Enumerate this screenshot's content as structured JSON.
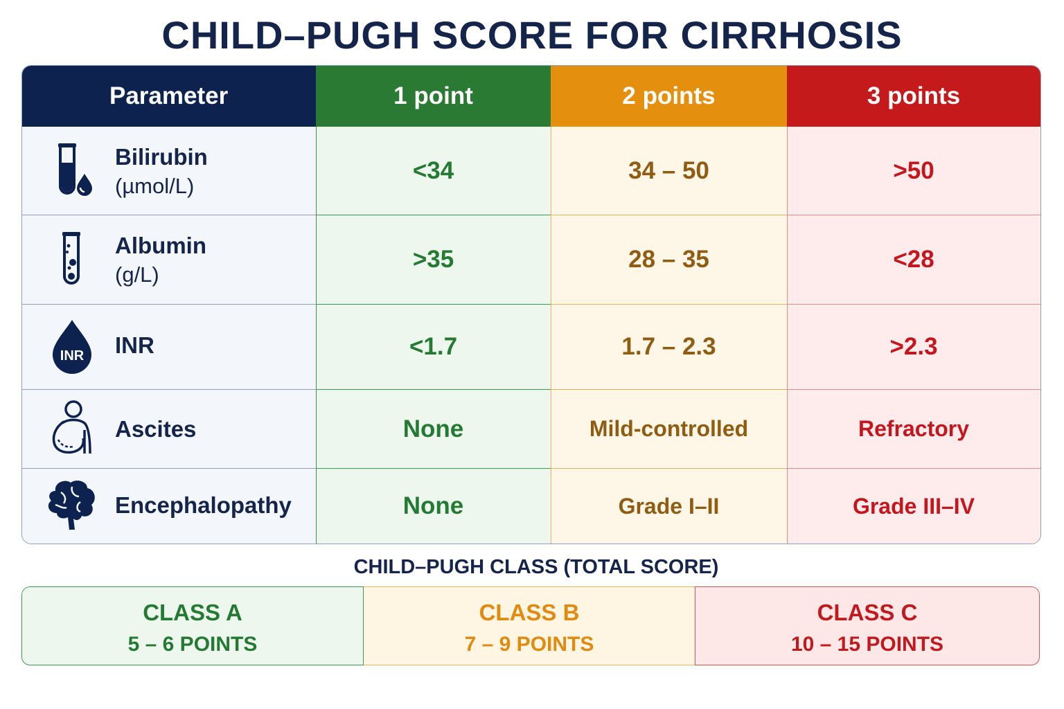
{
  "title": "CHILD–PUGH SCORE FOR CIRRHOSIS",
  "header": {
    "parameter": "Parameter",
    "p1": "1 point",
    "p2": "2 points",
    "p3": "3 points"
  },
  "rows": [
    {
      "label": "Bilirubin",
      "unit": "(µmol/L)",
      "icon": "test-tube-drop-icon",
      "p1": "<34",
      "p2": "34 – 50",
      "p3": ">50"
    },
    {
      "label": "Albumin",
      "unit": "(g/L)",
      "icon": "test-tube-icon",
      "p1": ">35",
      "p2": "28 – 35",
      "p3": "<28"
    },
    {
      "label": "INR",
      "unit": "",
      "icon": "blood-drop-icon",
      "icon_text": "INR",
      "p1": "<1.7",
      "p2": "1.7 – 2.3",
      "p3": ">2.3"
    },
    {
      "label": "Ascites",
      "unit": "",
      "icon": "abdomen-icon",
      "p1": "None",
      "p2": "Mild-controlled",
      "p3": "Refractory"
    },
    {
      "label": "Encephalopathy",
      "unit": "",
      "icon": "brain-icon",
      "p1": "None",
      "p2": "Grade I–II",
      "p3": "Grade III–IV"
    }
  ],
  "classes_title": "CHILD–PUGH CLASS (TOTAL SCORE)",
  "classes": [
    {
      "name": "CLASS A",
      "points": "5 – 6 POINTS"
    },
    {
      "name": "CLASS B",
      "points": "7 – 9 POINTS"
    },
    {
      "name": "CLASS C",
      "points": "10 – 15 POINTS"
    }
  ],
  "colors": {
    "navy": "#0e224f",
    "green": "#2a7a34",
    "orange": "#e4900e",
    "red": "#c41a1c"
  }
}
